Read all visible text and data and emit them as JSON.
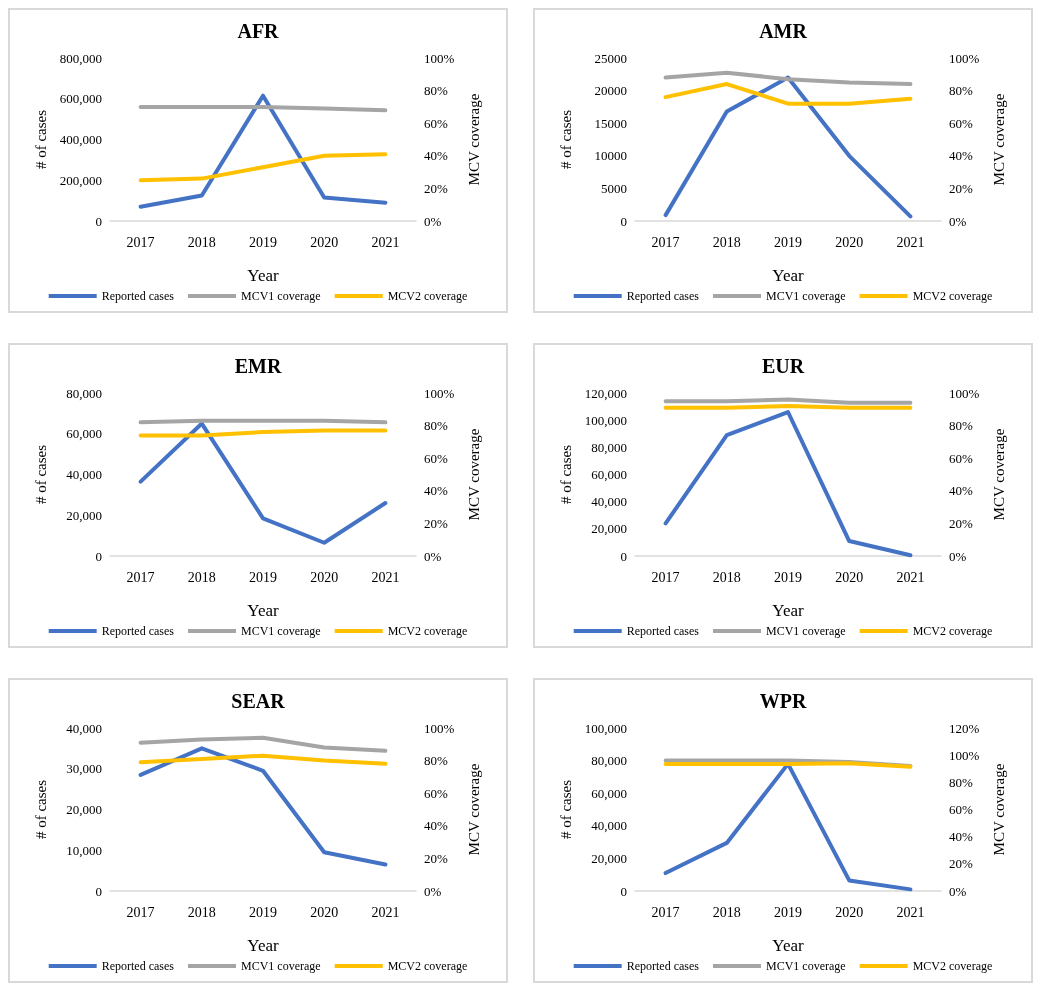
{
  "chart_data": [
    {
      "type": "line",
      "title": "AFR",
      "xlabel": "Year",
      "ylabel": "# of cases",
      "y2label": "MCV coverage",
      "categories": [
        "2017",
        "2018",
        "2019",
        "2020",
        "2021"
      ],
      "ylim": [
        0,
        800000
      ],
      "yticks": [
        0,
        {
          "value": 200000,
          "label": "200,000"
        },
        {
          "value": 400000,
          "label": "400,000"
        },
        {
          "value": 600000,
          "label": "600,000"
        },
        {
          "value": 800000,
          "label": "800,000"
        }
      ],
      "y2lim": [
        0,
        100
      ],
      "y2ticks": [
        {
          "value": 0,
          "label": "0%"
        },
        {
          "value": 20,
          "label": "20%"
        },
        {
          "value": 40,
          "label": "40%"
        },
        {
          "value": 60,
          "label": "60%"
        },
        {
          "value": 80,
          "label": "80%"
        },
        {
          "value": 100,
          "label": "100%"
        }
      ],
      "legend": "bottom",
      "grid": false,
      "marker": "none",
      "line_style": "solid",
      "series": [
        {
          "name": "Reported cases",
          "color": "#4472c4",
          "values": [
            70000,
            125000,
            615000,
            115000,
            90000
          ]
        },
        {
          "name": "MCV1 coverage",
          "color": "#a5a5a5",
          "axis": "y2",
          "values": [
            70,
            70,
            70,
            69,
            68
          ]
        },
        {
          "name": "MCV2 coverage",
          "color": "#ffc000",
          "axis": "y2",
          "values": [
            25,
            26,
            33,
            40,
            41
          ]
        }
      ]
    },
    {
      "type": "line",
      "title": "AMR",
      "xlabel": "Year",
      "ylabel": "# of cases",
      "y2label": "MCV coverage",
      "categories": [
        "2017",
        "2018",
        "2019",
        "2020",
        "2021"
      ],
      "ylim": [
        0,
        25000
      ],
      "yticks": [
        0,
        5000,
        10000,
        15000,
        20000,
        25000
      ],
      "y2lim": [
        0,
        100
      ],
      "y2ticks": [
        {
          "value": 0,
          "label": "0%"
        },
        {
          "value": 20,
          "label": "20%"
        },
        {
          "value": 40,
          "label": "40%"
        },
        {
          "value": 60,
          "label": "60%"
        },
        {
          "value": 80,
          "label": "80%"
        },
        {
          "value": 100,
          "label": "100%"
        }
      ],
      "legend": "bottom",
      "grid": false,
      "marker": "none",
      "line_style": "solid",
      "series": [
        {
          "name": "Reported cases",
          "color": "#4472c4",
          "values": [
            900,
            16800,
            22000,
            10000,
            700
          ]
        },
        {
          "name": "MCV1 coverage",
          "color": "#a5a5a5",
          "axis": "y2",
          "values": [
            88,
            91,
            87,
            85,
            84
          ]
        },
        {
          "name": "MCV2 coverage",
          "color": "#ffc000",
          "axis": "y2",
          "values": [
            76,
            84,
            72,
            72,
            75
          ]
        }
      ]
    },
    {
      "type": "line",
      "title": "EMR",
      "xlabel": "Year",
      "ylabel": "# of cases",
      "y2label": "MCV coverage",
      "categories": [
        "2017",
        "2018",
        "2019",
        "2020",
        "2021"
      ],
      "ylim": [
        0,
        80000
      ],
      "yticks": [
        0,
        {
          "value": 20000,
          "label": "20,000"
        },
        {
          "value": 40000,
          "label": "40,000"
        },
        {
          "value": 60000,
          "label": "60,000"
        },
        {
          "value": 80000,
          "label": "80,000"
        }
      ],
      "y2lim": [
        0,
        100
      ],
      "y2ticks": [
        {
          "value": 0,
          "label": "0%"
        },
        {
          "value": 20,
          "label": "20%"
        },
        {
          "value": 40,
          "label": "40%"
        },
        {
          "value": 60,
          "label": "60%"
        },
        {
          "value": 80,
          "label": "80%"
        },
        {
          "value": 100,
          "label": "100%"
        }
      ],
      "legend": "bottom",
      "grid": false,
      "marker": "none",
      "line_style": "solid",
      "series": [
        {
          "name": "Reported cases",
          "color": "#4472c4",
          "values": [
            36500,
            65000,
            18500,
            6500,
            26000
          ]
        },
        {
          "name": "MCV1 coverage",
          "color": "#a5a5a5",
          "axis": "y2",
          "values": [
            82,
            83,
            83,
            83,
            82
          ]
        },
        {
          "name": "MCV2 coverage",
          "color": "#ffc000",
          "axis": "y2",
          "values": [
            74,
            74,
            76,
            77,
            77
          ]
        }
      ]
    },
    {
      "type": "line",
      "title": "EUR",
      "xlabel": "Year",
      "ylabel": "# of cases",
      "y2label": "MCV coverage",
      "categories": [
        "2017",
        "2018",
        "2019",
        "2020",
        "2021"
      ],
      "ylim": [
        0,
        120000
      ],
      "yticks": [
        0,
        {
          "value": 20000,
          "label": "20,000"
        },
        {
          "value": 40000,
          "label": "40,000"
        },
        {
          "value": 60000,
          "label": "60,000"
        },
        {
          "value": 80000,
          "label": "80,000"
        },
        {
          "value": 100000,
          "label": "100,000"
        },
        {
          "value": 120000,
          "label": "120,000"
        }
      ],
      "y2lim": [
        0,
        100
      ],
      "y2ticks": [
        {
          "value": 0,
          "label": "0%"
        },
        {
          "value": 20,
          "label": "20%"
        },
        {
          "value": 40,
          "label": "40%"
        },
        {
          "value": 60,
          "label": "60%"
        },
        {
          "value": 80,
          "label": "80%"
        },
        {
          "value": 100,
          "label": "100%"
        }
      ],
      "legend": "bottom",
      "grid": false,
      "marker": "none",
      "line_style": "solid",
      "series": [
        {
          "name": "Reported cases",
          "color": "#4472c4",
          "values": [
            24000,
            89000,
            106000,
            11000,
            500
          ]
        },
        {
          "name": "MCV1 coverage",
          "color": "#a5a5a5",
          "axis": "y2",
          "values": [
            95,
            95,
            96,
            94,
            94
          ]
        },
        {
          "name": "MCV2 coverage",
          "color": "#ffc000",
          "axis": "y2",
          "values": [
            91,
            91,
            92,
            91,
            91
          ]
        }
      ]
    },
    {
      "type": "line",
      "title": "SEAR",
      "xlabel": "Year",
      "ylabel": "# of cases",
      "y2label": "MCV coverage",
      "categories": [
        "2017",
        "2018",
        "2019",
        "2020",
        "2021"
      ],
      "ylim": [
        0,
        40000
      ],
      "yticks": [
        0,
        {
          "value": 10000,
          "label": "10,000"
        },
        {
          "value": 20000,
          "label": "20,000"
        },
        {
          "value": 30000,
          "label": "30,000"
        },
        {
          "value": 40000,
          "label": "40,000"
        }
      ],
      "y2lim": [
        0,
        100
      ],
      "y2ticks": [
        {
          "value": 0,
          "label": "0%"
        },
        {
          "value": 20,
          "label": "20%"
        },
        {
          "value": 40,
          "label": "40%"
        },
        {
          "value": 60,
          "label": "60%"
        },
        {
          "value": 80,
          "label": "80%"
        },
        {
          "value": 100,
          "label": "100%"
        }
      ],
      "legend": "bottom",
      "grid": false,
      "marker": "none",
      "line_style": "solid",
      "series": [
        {
          "name": "Reported cases",
          "color": "#4472c4",
          "values": [
            28500,
            35000,
            29500,
            9500,
            6500
          ]
        },
        {
          "name": "MCV1 coverage",
          "color": "#a5a5a5",
          "axis": "y2",
          "values": [
            91,
            93,
            94,
            88,
            86
          ]
        },
        {
          "name": "MCV2 coverage",
          "color": "#ffc000",
          "axis": "y2",
          "values": [
            79,
            81,
            83,
            80,
            78
          ]
        }
      ]
    },
    {
      "type": "line",
      "title": "WPR",
      "xlabel": "Year",
      "ylabel": "# of cases",
      "y2label": "MCV coverage",
      "categories": [
        "2017",
        "2018",
        "2019",
        "2020",
        "2021"
      ],
      "ylim": [
        0,
        100000
      ],
      "yticks": [
        0,
        {
          "value": 20000,
          "label": "20,000"
        },
        {
          "value": 40000,
          "label": "40,000"
        },
        {
          "value": 60000,
          "label": "60,000"
        },
        {
          "value": 80000,
          "label": "80,000"
        },
        {
          "value": 100000,
          "label": "100,000"
        }
      ],
      "y2lim": [
        0,
        120
      ],
      "y2ticks": [
        {
          "value": 0,
          "label": "0%"
        },
        {
          "value": 20,
          "label": "20%"
        },
        {
          "value": 40,
          "label": "40%"
        },
        {
          "value": 60,
          "label": "60%"
        },
        {
          "value": 80,
          "label": "80%"
        },
        {
          "value": 100,
          "label": "100%"
        },
        {
          "value": 120,
          "label": "120%"
        }
      ],
      "legend": "bottom",
      "grid": false,
      "marker": "none",
      "line_style": "solid",
      "series": [
        {
          "name": "Reported cases",
          "color": "#4472c4",
          "values": [
            11000,
            29500,
            78000,
            6500,
            1000
          ]
        },
        {
          "name": "MCV1 coverage",
          "color": "#a5a5a5",
          "axis": "y2",
          "values": [
            96,
            96,
            96,
            95,
            92
          ]
        },
        {
          "name": "MCV2 coverage",
          "color": "#ffc000",
          "axis": "y2",
          "values": [
            93.5,
            93.5,
            93.5,
            94,
            91.5
          ]
        }
      ]
    }
  ]
}
